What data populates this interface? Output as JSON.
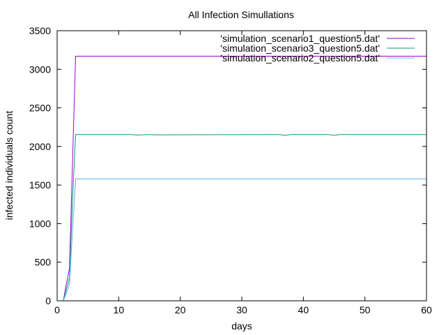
{
  "chart_data": {
    "type": "line",
    "title": "All Infection Simullations",
    "xlabel": "days",
    "ylabel": "infected individuals count",
    "xlim": [
      0,
      60
    ],
    "ylim": [
      0,
      3500
    ],
    "x_ticks": [
      0,
      10,
      20,
      30,
      40,
      50,
      60
    ],
    "y_ticks": [
      0,
      500,
      1000,
      1500,
      2000,
      2500,
      3000,
      3500
    ],
    "grid": false,
    "legend_position": "top-right",
    "series": [
      {
        "name": "'simulation_scenario1_question5.dat'",
        "color": "#9400d3",
        "x": [
          1,
          1.5,
          2,
          2.5,
          3,
          60
        ],
        "y": [
          0,
          220,
          420,
          1800,
          3170,
          3170
        ]
      },
      {
        "name": "'simulation_scenario3_question5.dat'",
        "color": "#009e73",
        "x": [
          1,
          1.5,
          2,
          2.5,
          3,
          12,
          13,
          15,
          16,
          36,
          37,
          38,
          44,
          45,
          46,
          60
        ],
        "y": [
          0,
          150,
          300,
          1300,
          2155,
          2155,
          2148,
          2155,
          2150,
          2155,
          2145,
          2155,
          2155,
          2145,
          2155,
          2155
        ]
      },
      {
        "name": "'simulation_scenario2_question5.dat'",
        "color": "#56b4e9",
        "x": [
          1,
          1.5,
          2,
          2.5,
          3,
          60
        ],
        "y": [
          0,
          100,
          220,
          900,
          1580,
          1580
        ]
      }
    ]
  }
}
